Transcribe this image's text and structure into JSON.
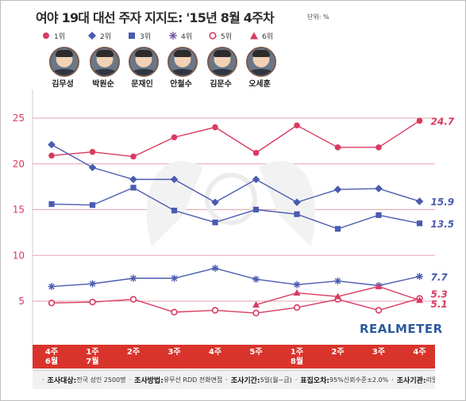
{
  "title": "여야 19대 대선 주자 지지도: '15년 8월 4주차",
  "unit": "단위: %",
  "brand": "REALMETER",
  "candidates": [
    {
      "rank": "1위",
      "name": "김무성",
      "color": "#d93a60",
      "marker": "circle-filled"
    },
    {
      "rank": "2위",
      "name": "박원순",
      "color": "#4a5bb0",
      "marker": "diamond"
    },
    {
      "rank": "3위",
      "name": "문재인",
      "color": "#4a5bb0",
      "marker": "square"
    },
    {
      "rank": "4위",
      "name": "안철수",
      "color": "#4a5bb0",
      "marker": "asterisk"
    },
    {
      "rank": "5위",
      "name": "김문수",
      "color": "#d93a60",
      "marker": "circle-open"
    },
    {
      "rank": "6위",
      "name": "오세훈",
      "color": "#d93a60",
      "marker": "triangle"
    }
  ],
  "x_labels": [
    "4주\n6월",
    "1주\n7월",
    "2주",
    "3주",
    "4주",
    "5주",
    "1주\n8월",
    "2주",
    "3주",
    "4주"
  ],
  "footer": {
    "target_key": "조사대상:",
    "target_val": "전국 성인 2500명",
    "method_key": "조사방법:",
    "method_val": "유무선 RDD 전화면접",
    "period_key": "조사기간:",
    "period_val": "5일(월~금)",
    "error_key": "표집오차:",
    "error_val": "95%신뢰수준±2.0%",
    "org_key": "조사기관:",
    "org_val": "리얼미터"
  },
  "chart_data": {
    "type": "line",
    "categories": [
      "6월 4주",
      "7월 1주",
      "7월 2주",
      "7월 3주",
      "7월 4주",
      "7월 5주",
      "8월 1주",
      "8월 2주",
      "8월 3주",
      "8월 4주"
    ],
    "ylim": [
      3,
      27
    ],
    "yticks": [
      5,
      10,
      15,
      20,
      25
    ],
    "grid": true,
    "legend": "top",
    "series": [
      {
        "name": "김무성",
        "color": "#d93a60",
        "marker": "circle-filled",
        "values": [
          20.9,
          21.3,
          20.8,
          22.9,
          24.0,
          21.2,
          24.2,
          21.8,
          21.8,
          24.7
        ],
        "end_label": "24.7"
      },
      {
        "name": "박원순",
        "color": "#4a5bb0",
        "marker": "diamond",
        "values": [
          22.1,
          19.6,
          18.3,
          18.3,
          15.8,
          18.3,
          15.8,
          17.2,
          17.3,
          15.9
        ],
        "end_label": "15.9"
      },
      {
        "name": "문재인",
        "color": "#4a5bb0",
        "marker": "square",
        "values": [
          15.6,
          15.5,
          17.4,
          14.9,
          13.6,
          15.0,
          14.5,
          12.9,
          14.4,
          13.5
        ],
        "end_label": "13.5"
      },
      {
        "name": "안철수",
        "color": "#4a5bb0",
        "marker": "asterisk",
        "values": [
          6.6,
          6.9,
          7.5,
          7.5,
          8.6,
          7.4,
          6.8,
          7.2,
          6.7,
          7.7
        ],
        "end_label": "7.7"
      },
      {
        "name": "김문수",
        "color": "#d93a60",
        "marker": "circle-open",
        "values": [
          4.8,
          4.9,
          5.2,
          3.8,
          4.0,
          3.7,
          4.3,
          5.2,
          4.0,
          5.3
        ],
        "end_label": "5.3"
      },
      {
        "name": "오세훈",
        "color": "#d93a60",
        "marker": "triangle",
        "values": [
          null,
          null,
          null,
          null,
          null,
          4.6,
          5.9,
          5.5,
          6.6,
          5.1
        ],
        "end_label": "5.1"
      }
    ]
  }
}
